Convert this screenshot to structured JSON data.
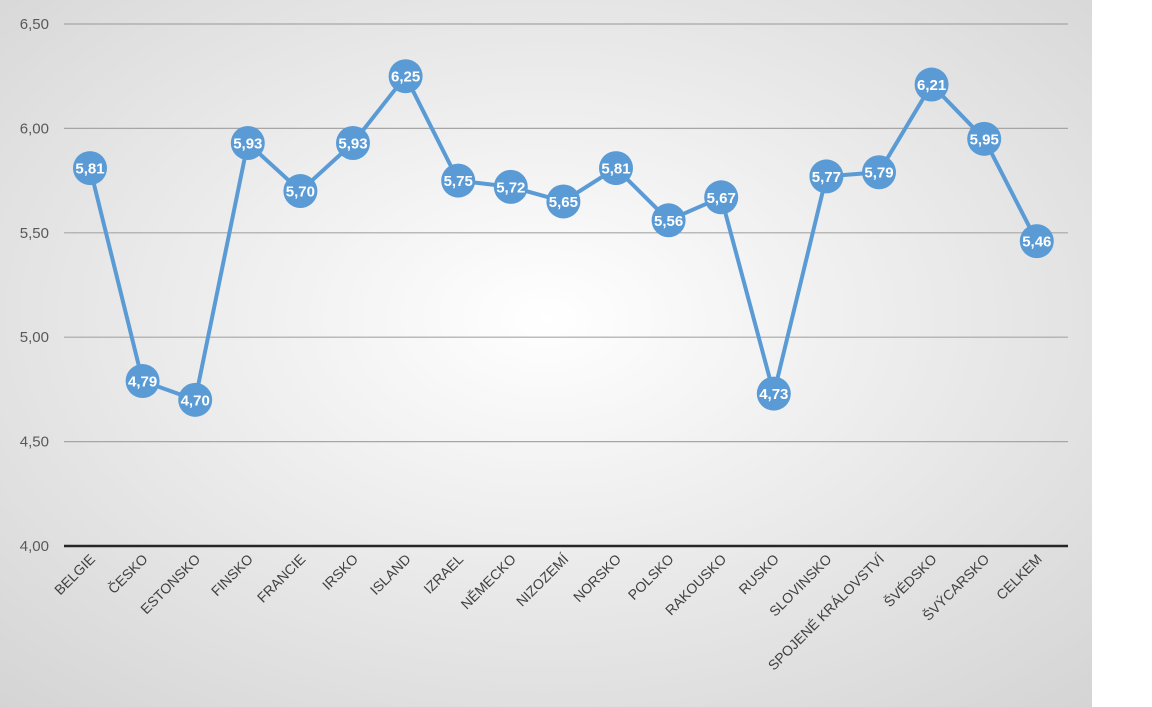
{
  "chart_data": {
    "type": "line",
    "title": "",
    "xlabel": "",
    "ylabel": "",
    "categories": [
      "BELGIE",
      "ČESKO",
      "ESTONSKO",
      "FINSKO",
      "FRANCIE",
      "IRSKO",
      "ISLAND",
      "IZRAEL",
      "NĚMECKO",
      "NIZOZEMÍ",
      "NORSKO",
      "POLSKO",
      "RAKOUSKO",
      "RUSKO",
      "SLOVINSKO",
      "SPOJENÉ KRÁLOVSTVÍ",
      "ŠVÉDSKO",
      "ŠVÝCARSKO",
      "CELKEM"
    ],
    "series": [
      {
        "values": [
          5.81,
          4.79,
          4.7,
          5.93,
          5.7,
          5.93,
          6.25,
          5.75,
          5.72,
          5.65,
          5.81,
          5.56,
          5.67,
          4.73,
          5.77,
          5.79,
          6.21,
          5.95,
          5.46
        ],
        "labels": [
          "5,81",
          "4,79",
          "4,70",
          "5,93",
          "5,70",
          "5,93",
          "6,25",
          "5,75",
          "5,72",
          "5,65",
          "5,81",
          "5,56",
          "5,67",
          "4,73",
          "5,77",
          "5,79",
          "6,21",
          "5,95",
          "5,46"
        ]
      }
    ],
    "ylim": [
      4.0,
      6.5
    ],
    "yticks": [
      4.0,
      4.5,
      5.0,
      5.5,
      6.0,
      6.5
    ],
    "ytick_labels": [
      "4,00",
      "4,50",
      "5,00",
      "5,50",
      "6,00",
      "6,50"
    ],
    "grid": true,
    "legend": "none",
    "colors": {
      "line": "#5b9bd5",
      "marker": "#5b9bd5",
      "data_label": "#ffffff",
      "gridline": "#a6a6a6",
      "axis": "#262626",
      "background_center": "#ffffff",
      "background_edge": "#d4d4d4"
    }
  }
}
